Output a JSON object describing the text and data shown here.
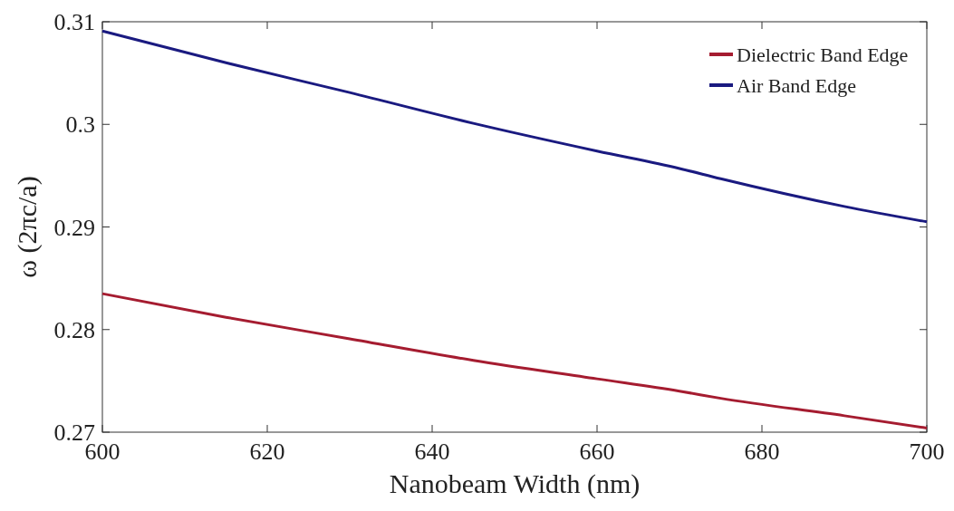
{
  "chart_data": {
    "type": "line",
    "xlabel": "Nanobeam Width (nm)",
    "ylabel": "ω (2πc/a)",
    "x": [
      600,
      615,
      630,
      645,
      660,
      670,
      675,
      690,
      700
    ],
    "series": [
      {
        "name": "Dielectric Band Edge",
        "color": "#a51c30",
        "values": [
          0.2835,
          0.2812,
          0.2791,
          0.277,
          0.2752,
          0.274,
          0.2733,
          0.2716,
          0.2704
        ]
      },
      {
        "name": "Air Band Edge",
        "color": "#1a1a80",
        "values": [
          0.3091,
          0.306,
          0.3031,
          0.3001,
          0.2974,
          0.2957,
          0.2947,
          0.292,
          0.2905
        ]
      }
    ],
    "xlim": [
      600,
      700
    ],
    "ylim": [
      0.27,
      0.31
    ],
    "xticks": [
      600,
      620,
      640,
      660,
      680,
      700
    ],
    "yticks": [
      0.27,
      0.28,
      0.29,
      {
        "value": 0.3,
        "label": "0.3"
      },
      0.31
    ],
    "legend": "top right",
    "grid": false
  }
}
